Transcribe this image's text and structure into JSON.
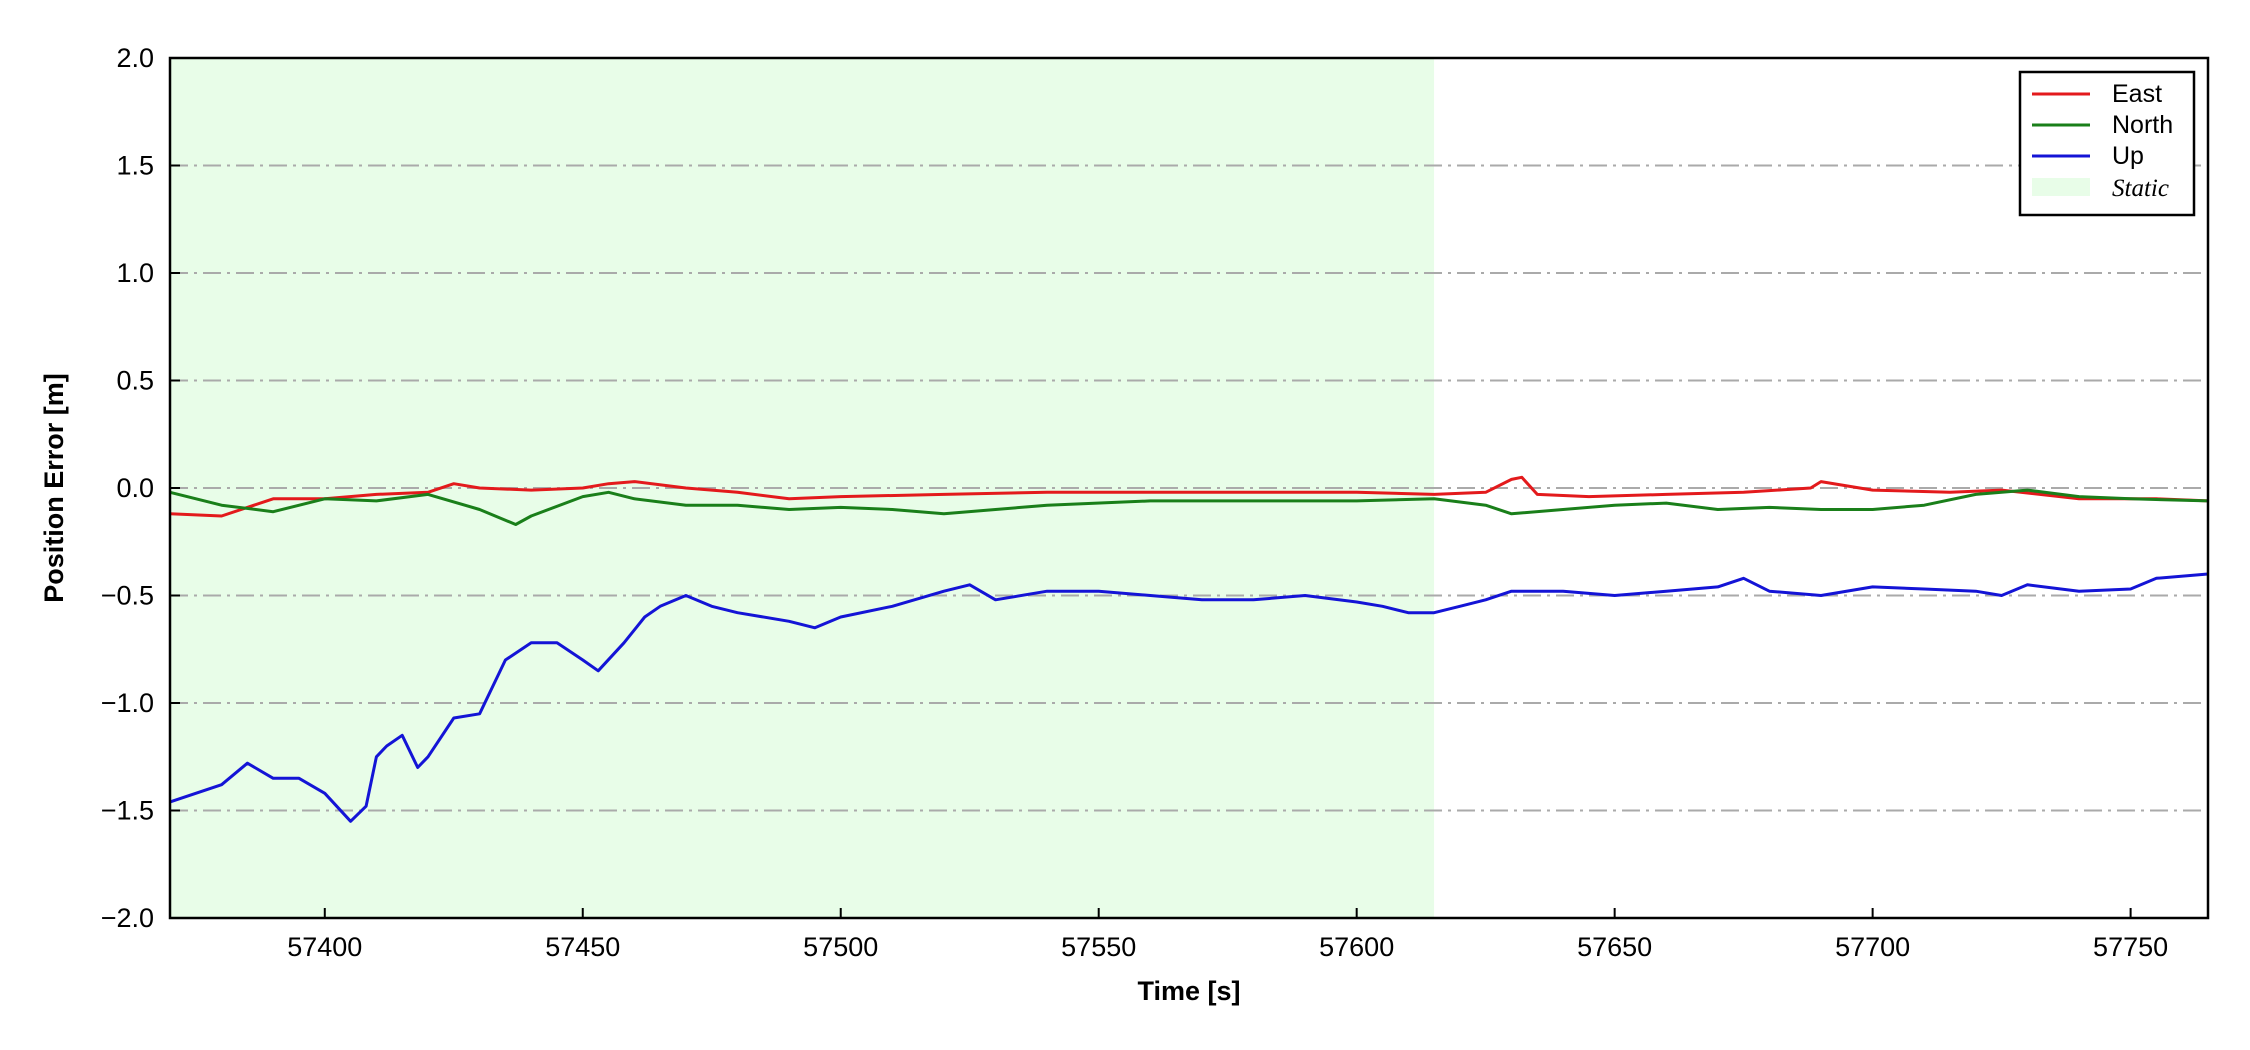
{
  "chart_data": {
    "type": "line",
    "xlabel": "Time [s]",
    "ylabel": "Position Error [m]",
    "xlim": [
      57370,
      57765
    ],
    "ylim": [
      -2.0,
      2.0
    ],
    "xticks": [
      57400,
      57450,
      57500,
      57550,
      57600,
      57650,
      57700,
      57750
    ],
    "xtick_labels": [
      "57400",
      "57450",
      "57500",
      "57550",
      "57600",
      "57650",
      "57700",
      "57750"
    ],
    "yticks": [
      2.0,
      1.5,
      1.0,
      0.5,
      0.0,
      -0.5,
      -1.0,
      -1.5,
      -2.0
    ],
    "ytick_labels": [
      "2.0",
      "1.5",
      "1.0",
      "0.5",
      "0.0",
      "−0.5",
      "−1.0",
      "−1.5",
      "−2.0"
    ],
    "grid": "horizontal dash-dot",
    "legend_position": "top-right",
    "static_span": {
      "x_start": 57370,
      "x_end": 57615,
      "color": "#e8fde8",
      "label": "Static"
    },
    "series": [
      {
        "name": "East",
        "color": "#e31a1c",
        "x": [
          57370,
          57380,
          57390,
          57400,
          57410,
          57420,
          57425,
          57430,
          57440,
          57450,
          57455,
          57460,
          57470,
          57480,
          57490,
          57500,
          57520,
          57540,
          57560,
          57580,
          57600,
          57615,
          57625,
          57630,
          57632,
          57635,
          57645,
          57660,
          57675,
          57688,
          57690,
          57700,
          57715,
          57725,
          57740,
          57755,
          57765
        ],
        "y": [
          -0.12,
          -0.13,
          -0.05,
          -0.05,
          -0.03,
          -0.02,
          0.02,
          0.0,
          -0.01,
          0.0,
          0.02,
          0.03,
          0.0,
          -0.02,
          -0.05,
          -0.04,
          -0.03,
          -0.02,
          -0.02,
          -0.02,
          -0.02,
          -0.03,
          -0.02,
          0.04,
          0.05,
          -0.03,
          -0.04,
          -0.03,
          -0.02,
          0.0,
          0.03,
          -0.01,
          -0.02,
          -0.01,
          -0.05,
          -0.05,
          -0.06
        ]
      },
      {
        "name": "North",
        "color": "#1a7f1a",
        "x": [
          57370,
          57380,
          57390,
          57400,
          57410,
          57420,
          57430,
          57437,
          57440,
          57450,
          57455,
          57460,
          57470,
          57480,
          57490,
          57500,
          57510,
          57520,
          57530,
          57540,
          57560,
          57580,
          57600,
          57615,
          57625,
          57630,
          57640,
          57650,
          57660,
          57670,
          57680,
          57690,
          57700,
          57710,
          57720,
          57730,
          57740,
          57750,
          57765
        ],
        "y": [
          -0.02,
          -0.08,
          -0.11,
          -0.05,
          -0.06,
          -0.03,
          -0.1,
          -0.17,
          -0.13,
          -0.04,
          -0.02,
          -0.05,
          -0.08,
          -0.08,
          -0.1,
          -0.09,
          -0.1,
          -0.12,
          -0.1,
          -0.08,
          -0.06,
          -0.06,
          -0.06,
          -0.05,
          -0.08,
          -0.12,
          -0.1,
          -0.08,
          -0.07,
          -0.1,
          -0.09,
          -0.1,
          -0.1,
          -0.08,
          -0.03,
          -0.01,
          -0.04,
          -0.05,
          -0.06
        ]
      },
      {
        "name": "Up",
        "color": "#1414d6",
        "x": [
          57370,
          57380,
          57385,
          57390,
          57395,
          57400,
          57405,
          57408,
          57410,
          57412,
          57415,
          57418,
          57420,
          57425,
          57430,
          57435,
          57440,
          57445,
          57450,
          57453,
          57458,
          57462,
          57465,
          57470,
          57475,
          57480,
          57490,
          57495,
          57500,
          57510,
          57520,
          57525,
          57530,
          57540,
          57550,
          57560,
          57570,
          57580,
          57590,
          57600,
          57605,
          57610,
          57615,
          57620,
          57625,
          57630,
          57640,
          57650,
          57660,
          57670,
          57675,
          57680,
          57690,
          57700,
          57710,
          57720,
          57725,
          57730,
          57740,
          57750,
          57755,
          57765
        ],
        "y": [
          -1.46,
          -1.38,
          -1.28,
          -1.35,
          -1.35,
          -1.42,
          -1.55,
          -1.48,
          -1.25,
          -1.2,
          -1.15,
          -1.3,
          -1.25,
          -1.07,
          -1.05,
          -0.8,
          -0.72,
          -0.72,
          -0.8,
          -0.85,
          -0.72,
          -0.6,
          -0.55,
          -0.5,
          -0.55,
          -0.58,
          -0.62,
          -0.65,
          -0.6,
          -0.55,
          -0.48,
          -0.45,
          -0.52,
          -0.48,
          -0.48,
          -0.5,
          -0.52,
          -0.52,
          -0.5,
          -0.53,
          -0.55,
          -0.58,
          -0.58,
          -0.55,
          -0.52,
          -0.48,
          -0.48,
          -0.5,
          -0.48,
          -0.46,
          -0.42,
          -0.48,
          -0.5,
          -0.46,
          -0.47,
          -0.48,
          -0.5,
          -0.45,
          -0.48,
          -0.47,
          -0.42,
          -0.4
        ]
      }
    ]
  }
}
